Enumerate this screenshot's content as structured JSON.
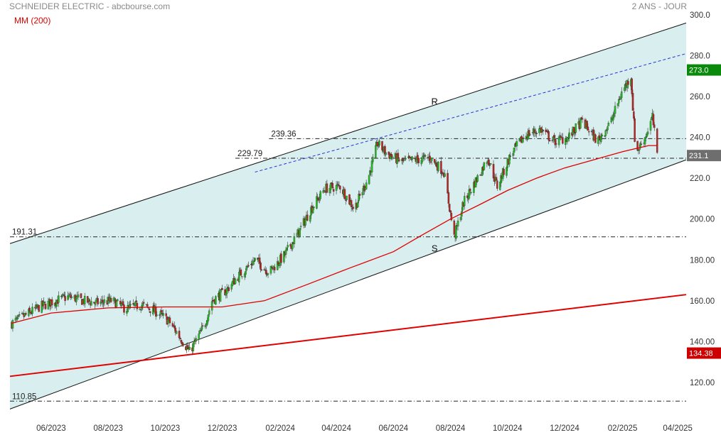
{
  "header": {
    "title": "SCHNEIDER ELECTRIC - abcbourse.com",
    "period": "2 ANS - JOUR",
    "ma_label": "MM (200)",
    "ma_color": "#e00000"
  },
  "chart_data": {
    "type": "candlestick",
    "x_ticks": [
      "06/2023",
      "08/2023",
      "10/2023",
      "12/2023",
      "02/2024",
      "04/2024",
      "06/2024",
      "08/2024",
      "10/2024",
      "12/2024",
      "02/2025",
      "04/2025"
    ],
    "y_ticks": [
      "120.00",
      "140.00",
      "160.00",
      "180.00",
      "200.00",
      "220.0",
      "240.0",
      "260.0",
      "280.0",
      "300.0"
    ],
    "ylim": [
      104,
      301
    ],
    "xlim": [
      "2023-04-18",
      "2025-04-10"
    ],
    "price_tags": [
      {
        "value": "273.0",
        "color": "#0a8a0a"
      },
      {
        "value": "231.1",
        "color": "#6e6e6e"
      },
      {
        "value": "134.38",
        "color": "#cc0000"
      }
    ],
    "levels": [
      {
        "label": "239.36",
        "value": 239.36,
        "x_start": "2024-01-20"
      },
      {
        "label": "229.79",
        "value": 229.79,
        "x_start": "2023-12-15"
      },
      {
        "label": "191.31",
        "value": 191.31,
        "x_start": "2023-04-18"
      },
      {
        "label": "110.85",
        "value": 110.85,
        "x_start": "2023-04-18"
      }
    ],
    "channel": {
      "upper": [
        [
          "2023-04-18",
          188
        ],
        [
          "2025-04-10",
          296
        ]
      ],
      "lower": [
        [
          "2023-04-18",
          107
        ],
        [
          "2025-04-10",
          229
        ]
      ]
    },
    "resistance_dashed": [
      [
        "2024-01-05",
        223
      ],
      [
        "2025-04-10",
        281
      ]
    ],
    "support_red": [
      [
        "2023-04-18",
        123
      ],
      [
        "2025-04-10",
        163
      ]
    ],
    "annotations": [
      {
        "text": "R",
        "x": "2024-07-15",
        "y": 256
      },
      {
        "text": "S",
        "x": "2024-07-15",
        "y": 184
      }
    ],
    "ma200": [
      [
        "2023-04-20",
        149
      ],
      [
        "2023-06-01",
        154
      ],
      [
        "2023-08-01",
        156.5
      ],
      [
        "2023-10-01",
        157
      ],
      [
        "2023-12-01",
        157
      ],
      [
        "2024-01-15",
        160
      ],
      [
        "2024-03-01",
        168
      ],
      [
        "2024-04-15",
        176
      ],
      [
        "2024-06-01",
        184
      ],
      [
        "2024-07-01",
        192
      ],
      [
        "2024-08-01",
        200
      ],
      [
        "2024-09-01",
        207
      ],
      [
        "2024-10-01",
        214
      ],
      [
        "2024-11-01",
        220
      ],
      [
        "2024-12-01",
        225
      ],
      [
        "2025-01-01",
        229
      ],
      [
        "2025-02-01",
        233
      ],
      [
        "2025-03-01",
        236
      ],
      [
        "2025-03-10",
        236
      ]
    ],
    "price_anchors": [
      [
        "2023-04-20",
        149
      ],
      [
        "2023-05-05",
        153
      ],
      [
        "2023-05-20",
        157
      ],
      [
        "2023-06-05",
        160
      ],
      [
        "2023-06-20",
        162
      ],
      [
        "2023-07-05",
        160
      ],
      [
        "2023-07-20",
        159
      ],
      [
        "2023-08-05",
        160
      ],
      [
        "2023-08-20",
        156
      ],
      [
        "2023-09-05",
        158
      ],
      [
        "2023-09-20",
        155
      ],
      [
        "2023-10-05",
        150
      ],
      [
        "2023-10-20",
        140
      ],
      [
        "2023-10-27",
        135
      ],
      [
        "2023-11-05",
        142
      ],
      [
        "2023-11-12",
        148
      ],
      [
        "2023-11-20",
        160
      ],
      [
        "2023-12-05",
        165
      ],
      [
        "2023-12-20",
        173
      ],
      [
        "2024-01-05",
        180
      ],
      [
        "2024-01-20",
        174
      ],
      [
        "2024-02-05",
        182
      ],
      [
        "2024-02-20",
        193
      ],
      [
        "2024-03-05",
        205
      ],
      [
        "2024-03-20",
        215
      ],
      [
        "2024-04-05",
        216
      ],
      [
        "2024-04-20",
        205
      ],
      [
        "2024-05-05",
        220
      ],
      [
        "2024-05-15",
        237
      ],
      [
        "2024-05-25",
        232
      ],
      [
        "2024-06-10",
        228
      ],
      [
        "2024-06-25",
        229
      ],
      [
        "2024-07-10",
        230
      ],
      [
        "2024-07-25",
        223
      ],
      [
        "2024-08-05",
        191
      ],
      [
        "2024-08-15",
        208
      ],
      [
        "2024-09-01",
        222
      ],
      [
        "2024-09-10",
        230
      ],
      [
        "2024-09-20",
        216
      ],
      [
        "2024-10-05",
        232
      ],
      [
        "2024-10-20",
        241
      ],
      [
        "2024-11-05",
        244
      ],
      [
        "2024-11-20",
        238
      ],
      [
        "2024-12-05",
        240
      ],
      [
        "2024-12-20",
        248
      ],
      [
        "2025-01-05",
        238
      ],
      [
        "2025-01-20",
        248
      ],
      [
        "2025-01-31",
        262
      ],
      [
        "2025-02-10",
        270
      ],
      [
        "2025-02-15",
        232
      ],
      [
        "2025-02-25",
        240
      ],
      [
        "2025-03-05",
        250
      ],
      [
        "2025-03-10",
        231
      ]
    ]
  }
}
